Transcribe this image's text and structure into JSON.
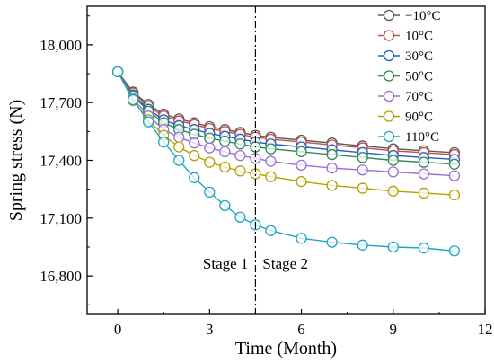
{
  "chart_data": {
    "type": "line",
    "xlabel": "Time (Month)",
    "ylabel": "Spring stress (N)",
    "xlim": [
      -1,
      12
    ],
    "ylim": [
      16600,
      18200
    ],
    "x_ticks": [
      0,
      3,
      6,
      9,
      12
    ],
    "y_ticks": [
      16800,
      17100,
      17400,
      17700,
      18000
    ],
    "x_tick_labels": [
      "0",
      "3",
      "6",
      "9",
      "12"
    ],
    "y_tick_labels": [
      "16,800",
      "17,100",
      "17,400",
      "17,700",
      "18,000"
    ],
    "annotations": {
      "stage1": "Stage 1",
      "stage2": "Stage 2",
      "stage_boundary_x": 4.5
    },
    "legend_position": "top-right",
    "x": [
      0,
      0.5,
      1,
      1.5,
      2,
      2.5,
      3,
      3.5,
      4,
      4.5,
      5,
      6,
      7,
      8,
      9,
      10,
      11
    ],
    "series": [
      {
        "name": "−10°C",
        "color": "#5a5a5a",
        "values": [
          17860,
          17755,
          17690,
          17640,
          17615,
          17595,
          17575,
          17560,
          17545,
          17530,
          17520,
          17505,
          17490,
          17475,
          17460,
          17450,
          17440
        ]
      },
      {
        "name": "10°C",
        "color": "#c0504d",
        "values": [
          17860,
          17750,
          17680,
          17630,
          17605,
          17585,
          17565,
          17550,
          17535,
          17520,
          17510,
          17495,
          17480,
          17465,
          17450,
          17440,
          17430
        ]
      },
      {
        "name": "30°C",
        "color": "#1f5fbf",
        "values": [
          17860,
          17740,
          17665,
          17610,
          17580,
          17560,
          17540,
          17525,
          17510,
          17495,
          17485,
          17470,
          17455,
          17440,
          17425,
          17415,
          17405
        ]
      },
      {
        "name": "50°C",
        "color": "#2e8b57",
        "values": [
          17860,
          17735,
          17655,
          17595,
          17560,
          17535,
          17515,
          17500,
          17485,
          17470,
          17460,
          17445,
          17430,
          17415,
          17400,
          17390,
          17380
        ]
      },
      {
        "name": "70°C",
        "color": "#9b6fd6",
        "values": [
          17860,
          17720,
          17630,
          17560,
          17520,
          17490,
          17465,
          17445,
          17425,
          17410,
          17395,
          17375,
          17360,
          17350,
          17340,
          17330,
          17320
        ]
      },
      {
        "name": "90°C",
        "color": "#b8a000",
        "values": [
          17860,
          17710,
          17610,
          17530,
          17470,
          17425,
          17390,
          17365,
          17345,
          17330,
          17315,
          17290,
          17270,
          17255,
          17240,
          17230,
          17220
        ]
      },
      {
        "name": "110°C",
        "color": "#1fa6c4",
        "values": [
          17860,
          17715,
          17600,
          17495,
          17400,
          17310,
          17235,
          17165,
          17105,
          17065,
          17035,
          16995,
          16975,
          16960,
          16950,
          16945,
          16930
        ]
      }
    ]
  }
}
